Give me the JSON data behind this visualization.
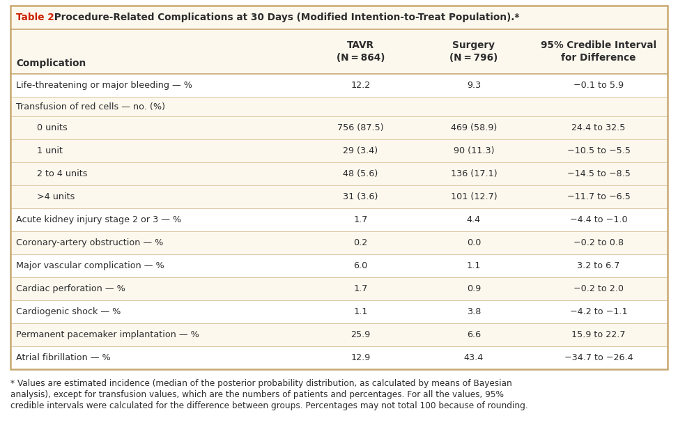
{
  "title_prefix": "Table 2.",
  "title_rest": " Procedure-Related Complications at 30 Days (Modified Intention-to-Treat Population).*",
  "col_headers": [
    "Complication",
    "TAVR\n(N = 864)",
    "Surgery\n(N = 796)",
    "95% Credible Interval\nfor Difference"
  ],
  "rows": [
    {
      "label": "Life-threatening or major bleeding — %",
      "indent": 0,
      "tavr": "12.2",
      "surgery": "9.3",
      "ci": "−0.1 to 5.9"
    },
    {
      "label": "Transfusion of red cells — no. (%)",
      "indent": 0,
      "tavr": "",
      "surgery": "",
      "ci": ""
    },
    {
      "label": "0 units",
      "indent": 1,
      "tavr": "756 (87.5)",
      "surgery": "469 (58.9)",
      "ci": "24.4 to 32.5"
    },
    {
      "label": "1 unit",
      "indent": 1,
      "tavr": "29 (3.4)",
      "surgery": "90 (11.3)",
      "ci": "−10.5 to −5.5"
    },
    {
      "label": "2 to 4 units",
      "indent": 1,
      "tavr": "48 (5.6)",
      "surgery": "136 (17.1)",
      "ci": "−14.5 to −8.5"
    },
    {
      "label": ">4 units",
      "indent": 1,
      "tavr": "31 (3.6)",
      "surgery": "101 (12.7)",
      "ci": "−11.7 to −6.5"
    },
    {
      "label": "Acute kidney injury stage 2 or 3 — %",
      "indent": 0,
      "tavr": "1.7",
      "surgery": "4.4",
      "ci": "−4.4 to −1.0"
    },
    {
      "label": "Coronary-artery obstruction — %",
      "indent": 0,
      "tavr": "0.2",
      "surgery": "0.0",
      "ci": "−0.2 to 0.8"
    },
    {
      "label": "Major vascular complication — %",
      "indent": 0,
      "tavr": "6.0",
      "surgery": "1.1",
      "ci": "3.2 to 6.7"
    },
    {
      "label": "Cardiac perforation — %",
      "indent": 0,
      "tavr": "1.7",
      "surgery": "0.9",
      "ci": "−0.2 to 2.0"
    },
    {
      "label": "Cardiogenic shock — %",
      "indent": 0,
      "tavr": "1.1",
      "surgery": "3.8",
      "ci": "−4.2 to −1.1"
    },
    {
      "label": "Permanent pacemaker implantation — %",
      "indent": 0,
      "tavr": "25.9",
      "surgery": "6.6",
      "ci": "15.9 to 22.7"
    },
    {
      "label": "Atrial fibrillation — %",
      "indent": 0,
      "tavr": "12.9",
      "surgery": "43.4",
      "ci": "−34.7 to −26.4"
    }
  ],
  "footnote_star": "* Values are estimated incidence (median of the posterior probability distribution, as calculated by means of Bayesian",
  "footnote_line2": "analysis), except for transfusion values, which are the numbers of patients and percentages. For all the values, 95%",
  "footnote_line3": "credible intervals were calculated for the difference between groups. Percentages may not total 100 because of rounding.",
  "bg_color": "#fdf8ee",
  "border_color": "#c8a870",
  "title_color": "#cc2200",
  "text_color": "#2c2c2c",
  "white_row": "#ffffff",
  "beige_row": "#fdf8ee",
  "row_colors": [
    "#ffffff",
    "#fdf8ee",
    "#fdf8ee",
    "#fdf8ee",
    "#fdf8ee",
    "#fdf8ee",
    "#ffffff",
    "#fdf8ee",
    "#ffffff",
    "#fdf8ee",
    "#ffffff",
    "#fdf8ee",
    "#ffffff"
  ]
}
